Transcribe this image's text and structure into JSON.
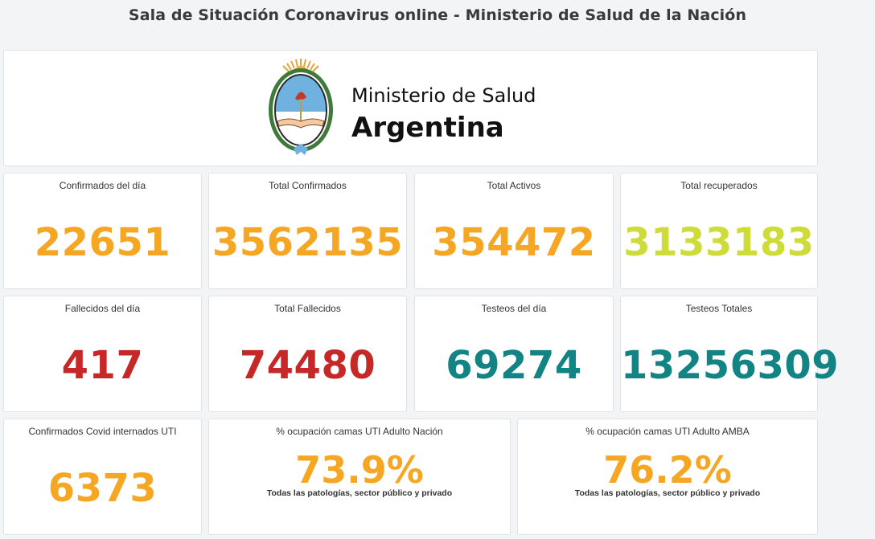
{
  "page_title": "Sala de Situación Coronavirus online - Ministerio de Salud de la Nación",
  "brand": {
    "line1": "Ministerio de Salud",
    "line2": "Argentina"
  },
  "colors": {
    "orange": "#f5a623",
    "yellowgreen": "#cddc39",
    "red": "#c62828",
    "teal": "#138484"
  },
  "stats": [
    {
      "label": "Confirmados del día",
      "value": "22651"
    },
    {
      "label": "Total Confirmados",
      "value": "3562135"
    },
    {
      "label": "Total Activos",
      "value": "354472"
    },
    {
      "label": "Total recuperados",
      "value": "3133183"
    },
    {
      "label": "Fallecidos del día",
      "value": "417"
    },
    {
      "label": "Total Fallecidos",
      "value": "74480"
    },
    {
      "label": "Testeos del día",
      "value": "69274"
    },
    {
      "label": "Testeos Totales",
      "value": "13256309"
    },
    {
      "label": "Confirmados Covid internados UTI",
      "value": "6373"
    }
  ],
  "occupancy": [
    {
      "label": "% ocupación camas UTI Adulto Nación",
      "value": "73.9%",
      "sub": "Todas las patologías, sector público y privado"
    },
    {
      "label": "% ocupación camas UTI Adulto AMBA",
      "value": "76.2%",
      "sub": "Todas las patologías, sector público y privado"
    }
  ]
}
